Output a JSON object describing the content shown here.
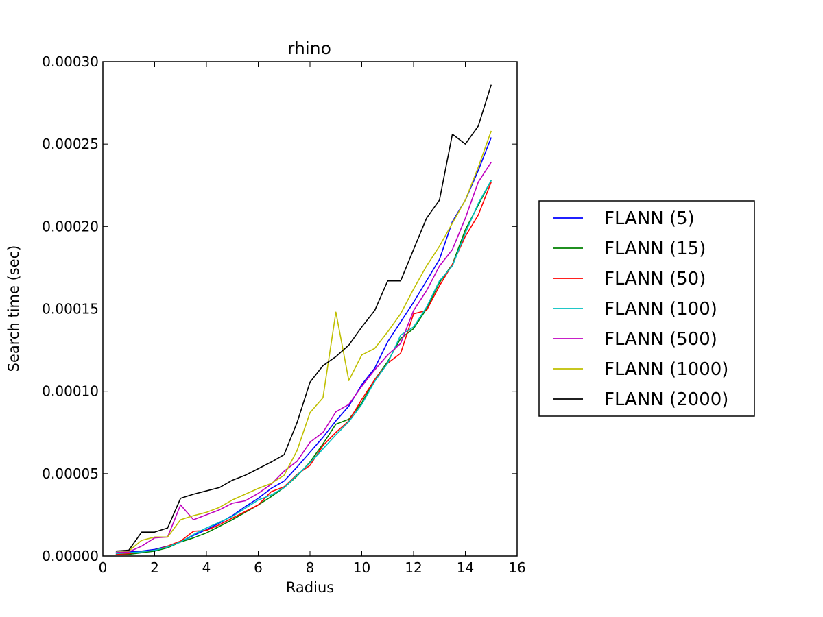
{
  "chart_data": {
    "type": "line",
    "title": "rhino",
    "xlabel": "Radius",
    "ylabel": "Search time (sec)",
    "xlim": [
      0,
      16
    ],
    "ylim": [
      0,
      0.0003
    ],
    "xticks": [
      "0",
      "2",
      "4",
      "6",
      "8",
      "10",
      "12",
      "14",
      "16"
    ],
    "yticks": [
      "0.00000",
      "0.00005",
      "0.00010",
      "0.00015",
      "0.00020",
      "0.00025",
      "0.00030"
    ],
    "grid": false,
    "legend_position": "outside-right",
    "x": [
      0.5,
      1,
      1.5,
      2,
      2.5,
      3,
      3.5,
      4,
      4.5,
      5,
      5.5,
      6,
      6.5,
      7,
      7.5,
      8,
      8.5,
      9,
      9.5,
      10,
      10.5,
      11,
      11.5,
      12,
      12.5,
      13,
      13.5,
      14,
      14.5,
      15
    ],
    "series": [
      {
        "name": "FLANN (5)",
        "color": "#0000ff",
        "values": [
          2e-06,
          2.5e-06,
          3e-06,
          4e-06,
          6e-06,
          8.5e-06,
          1.25e-05,
          1.6e-05,
          2e-05,
          2.45e-05,
          3e-05,
          3.5e-05,
          4.1e-05,
          4.55e-05,
          5.4e-05,
          6.3e-05,
          7.2e-05,
          8.2e-05,
          9.1e-05,
          0.000104,
          0.000114,
          0.00013,
          0.000142,
          0.000154,
          0.000167,
          0.00018,
          0.000203,
          0.000216,
          0.000234,
          0.000254
        ]
      },
      {
        "name": "FLANN (15)",
        "color": "#008000",
        "values": [
          1e-06,
          1e-06,
          2e-06,
          3e-06,
          5e-06,
          8.5e-06,
          1.1e-05,
          1.4e-05,
          1.8e-05,
          2.2e-05,
          2.65e-05,
          3.1e-05,
          3.6e-05,
          4.15e-05,
          4.85e-05,
          5.7e-05,
          6.8e-05,
          8e-05,
          8.3e-05,
          9.3e-05,
          0.000107,
          0.000118,
          0.000132,
          0.000138,
          0.00015,
          0.000166,
          0.000177,
          0.000198,
          0.000213,
          0.000228
        ]
      },
      {
        "name": "FLANN (50)",
        "color": "#ff0000",
        "values": [
          1e-06,
          1.5e-06,
          2.5e-06,
          3.5e-06,
          6e-06,
          9e-06,
          1.5e-05,
          1.55e-05,
          1.9e-05,
          2.3e-05,
          2.7e-05,
          3.1e-05,
          3.9e-05,
          4.2e-05,
          4.95e-05,
          5.5e-05,
          6.7e-05,
          7.5e-05,
          8.2e-05,
          9.5e-05,
          0.000107,
          0.000117,
          0.000123,
          0.000147,
          0.000149,
          0.000164,
          0.000177,
          0.000194,
          0.000207,
          0.000227
        ]
      },
      {
        "name": "FLANN (100)",
        "color": "#00bfbf",
        "values": [
          1.5e-06,
          2e-06,
          2.5e-06,
          3.5e-06,
          5.5e-06,
          8.5e-06,
          1.3e-05,
          1.7e-05,
          2.05e-05,
          2.4e-05,
          2.9e-05,
          3.4e-05,
          3.7e-05,
          4.15e-05,
          4.9e-05,
          5.65e-05,
          6.5e-05,
          7.35e-05,
          8.15e-05,
          9.2e-05,
          0.000106,
          0.000117,
          0.000134,
          0.000139,
          0.000151,
          0.000167,
          0.000176,
          0.000196,
          0.000214,
          0.000228
        ]
      },
      {
        "name": "FLANN (500)",
        "color": "#bf00bf",
        "values": [
          2e-06,
          2.5e-06,
          6e-06,
          1.1e-05,
          1.15e-05,
          3.1e-05,
          2.2e-05,
          2.5e-05,
          2.8e-05,
          3.2e-05,
          3.35e-05,
          3.8e-05,
          4.35e-05,
          5.15e-05,
          5.75e-05,
          6.9e-05,
          7.5e-05,
          8.75e-05,
          9.2e-05,
          0.000103,
          0.000113,
          0.000122,
          0.000129,
          0.000149,
          0.000161,
          0.000176,
          0.000186,
          0.000205,
          0.000227,
          0.000239
        ]
      },
      {
        "name": "FLANN (1000)",
        "color": "#bfbf00",
        "values": [
          3e-06,
          3e-06,
          9.5e-06,
          1.15e-05,
          1.15e-05,
          2.2e-05,
          2.45e-05,
          2.65e-05,
          2.95e-05,
          3.4e-05,
          3.75e-05,
          4.1e-05,
          4.4e-05,
          4.9e-05,
          6.4e-05,
          8.7e-05,
          9.6e-05,
          0.000148,
          0.0001065,
          0.000122,
          0.000126,
          0.000136,
          0.000147,
          0.000162,
          0.000176,
          0.000188,
          0.000202,
          0.000216,
          0.000236,
          0.000258
        ]
      },
      {
        "name": "FLANN (2000)",
        "color": "#000000",
        "values": [
          3e-06,
          3.5e-06,
          1.45e-05,
          1.45e-05,
          1.7e-05,
          3.5e-05,
          3.75e-05,
          3.95e-05,
          4.15e-05,
          4.6e-05,
          4.9e-05,
          5.3e-05,
          5.7e-05,
          6.15e-05,
          8.1e-05,
          0.0001055,
          0.0001155,
          0.000121,
          0.000128,
          0.000139,
          0.000149,
          0.000167,
          0.000167,
          0.000186,
          0.000205,
          0.000216,
          0.000256,
          0.00025,
          0.000261,
          0.000286
        ]
      }
    ]
  }
}
